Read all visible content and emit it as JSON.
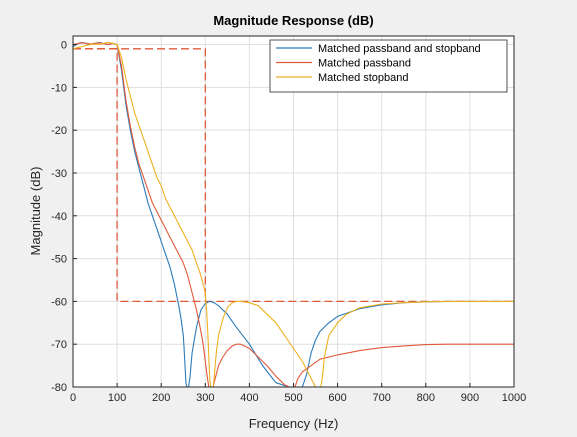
{
  "chart_data": {
    "type": "line",
    "title": "Magnitude Response (dB)",
    "xlabel": "Frequency (Hz)",
    "ylabel": "Magnitude (dB)",
    "xlim": [
      0,
      1000
    ],
    "ylim": [
      -80,
      2
    ],
    "xticks": [
      0,
      100,
      200,
      300,
      400,
      500,
      600,
      700,
      800,
      900,
      1000
    ],
    "yticks": [
      0,
      -10,
      -20,
      -30,
      -40,
      -50,
      -60,
      -70,
      -80
    ],
    "grid": true,
    "legend_position": "top-right",
    "mask": {
      "color": "#e05a3a",
      "style": "dashed",
      "segments": [
        {
          "x": [
            0,
            100,
            100,
            1000
          ],
          "y": [
            -1,
            -1,
            -60,
            -60
          ]
        },
        {
          "x": [
            0,
            300,
            300
          ],
          "y": [
            -1,
            -1,
            -60
          ]
        }
      ]
    },
    "series": [
      {
        "name": "Matched passband and stopband",
        "color": "#2b7bba",
        "x": [
          0,
          10,
          20,
          30,
          40,
          50,
          60,
          70,
          80,
          90,
          100,
          110,
          120,
          130,
          140,
          150,
          160,
          170,
          180,
          190,
          200,
          210,
          220,
          230,
          240,
          245,
          250,
          252,
          254,
          256,
          258,
          260,
          262,
          265,
          270,
          280,
          290,
          300,
          310,
          320,
          330,
          340,
          350,
          370,
          400,
          430,
          460,
          490,
          510,
          520,
          530,
          540,
          550,
          560,
          580,
          600,
          650,
          700,
          750,
          800,
          850,
          900,
          950,
          1000
        ],
        "y": [
          -0.5,
          0.2,
          0.5,
          0.3,
          0,
          0.3,
          0.5,
          0.2,
          0,
          0.3,
          0,
          -6,
          -14,
          -20,
          -25,
          -29,
          -33,
          -37,
          -40,
          -43,
          -46,
          -49,
          -52,
          -56,
          -61,
          -64,
          -68,
          -71,
          -75,
          -79,
          -80,
          -80,
          -80,
          -78,
          -72,
          -66,
          -62,
          -60.5,
          -60,
          -60.3,
          -61,
          -62,
          -63,
          -66,
          -70,
          -75,
          -79,
          -80,
          -80,
          -80,
          -77,
          -72,
          -69,
          -67,
          -65,
          -63.5,
          -61.7,
          -60.8,
          -60.3,
          -60.1,
          -60,
          -60,
          -60,
          -60
        ]
      },
      {
        "name": "Matched passband",
        "color": "#e05a3a",
        "x": [
          0,
          10,
          20,
          30,
          40,
          50,
          60,
          70,
          80,
          90,
          100,
          110,
          120,
          130,
          140,
          150,
          160,
          170,
          180,
          190,
          200,
          210,
          220,
          230,
          240,
          250,
          260,
          270,
          280,
          290,
          295,
          300,
          305,
          308,
          310,
          312,
          315,
          318,
          320,
          325,
          330,
          340,
          350,
          360,
          370,
          380,
          390,
          400,
          420,
          440,
          460,
          480,
          490,
          492,
          494,
          496,
          498,
          500,
          502,
          505,
          510,
          520,
          540,
          560,
          600,
          650,
          700,
          750,
          800,
          850,
          900,
          950,
          1000
        ],
        "y": [
          0,
          0.2,
          0.4,
          0.3,
          0.1,
          0.3,
          0.4,
          0.2,
          0,
          0.3,
          0,
          -5,
          -13,
          -19,
          -24,
          -28,
          -31,
          -34,
          -37,
          -39,
          -41,
          -43,
          -45,
          -47,
          -49,
          -51,
          -54,
          -58,
          -62,
          -67,
          -70,
          -74,
          -78,
          -80,
          -80,
          -80,
          -80,
          -80,
          -79,
          -77,
          -75,
          -73,
          -71.5,
          -70.5,
          -70,
          -70,
          -70.5,
          -71,
          -73,
          -75,
          -77.5,
          -79.5,
          -80,
          -80,
          -80,
          -80,
          -80,
          -80,
          -80,
          -79.5,
          -78,
          -76.5,
          -75,
          -73.5,
          -72.5,
          -71.5,
          -70.8,
          -70.4,
          -70.1,
          -70,
          -70,
          -70,
          -70
        ]
      },
      {
        "name": "Matched stopband",
        "color": "#edb120",
        "x": [
          0,
          10,
          20,
          30,
          40,
          50,
          60,
          70,
          80,
          90,
          100,
          110,
          120,
          130,
          140,
          150,
          160,
          170,
          180,
          190,
          200,
          210,
          220,
          230,
          240,
          250,
          260,
          270,
          280,
          290,
          295,
          300,
          302,
          304,
          306,
          308,
          310,
          312,
          314,
          316,
          318,
          320,
          325,
          330,
          340,
          350,
          360,
          370,
          380,
          400,
          420,
          440,
          460,
          480,
          500,
          520,
          540,
          550,
          555,
          558,
          560,
          562,
          565,
          570,
          580,
          600,
          620,
          650,
          700,
          750,
          800,
          850,
          900,
          950,
          1000
        ],
        "y": [
          -1,
          -0.7,
          -0.5,
          -0.2,
          0,
          0.1,
          0,
          0.3,
          0.5,
          0.3,
          0,
          -3,
          -8,
          -12,
          -16,
          -19,
          -22,
          -25,
          -28,
          -31,
          -33,
          -36,
          -38,
          -40,
          -42,
          -44,
          -46,
          -48,
          -51,
          -54,
          -56,
          -58,
          -61,
          -64,
          -68,
          -73,
          -78,
          -80,
          -80,
          -80,
          -80,
          -78,
          -72,
          -68,
          -64,
          -61.5,
          -60.4,
          -60,
          -60,
          -60.3,
          -61,
          -63,
          -65,
          -68,
          -71,
          -74,
          -78,
          -80,
          -80,
          -80,
          -80,
          -80,
          -78,
          -73,
          -68,
          -65,
          -63,
          -61.5,
          -60.6,
          -60.3,
          -60.1,
          -60,
          -60,
          -60,
          -60
        ]
      }
    ]
  }
}
